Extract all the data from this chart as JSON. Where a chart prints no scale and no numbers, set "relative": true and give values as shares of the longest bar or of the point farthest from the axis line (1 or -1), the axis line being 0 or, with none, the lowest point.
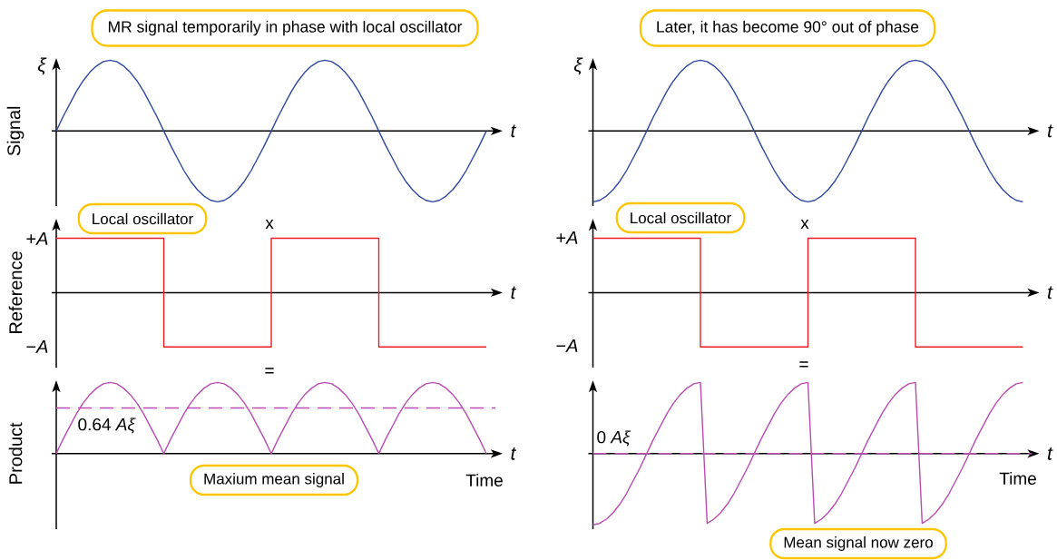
{
  "chart_data": [
    {
      "type": "line",
      "title": "MR signal temporarily in phase with local oscillator",
      "xlabel": "t",
      "ylabel": "Signal",
      "annotations": [
        "ξ"
      ],
      "relative": true,
      "categories": [
        null,
        null,
        null,
        null,
        null,
        null,
        null,
        null,
        null,
        null,
        null,
        null,
        null,
        null,
        null,
        null,
        null,
        null,
        null,
        null,
        null,
        null,
        null,
        null,
        null,
        null,
        null,
        null,
        null,
        null,
        null,
        null,
        null,
        null,
        null,
        null,
        null,
        null,
        null,
        null,
        null,
        null,
        null,
        null,
        null,
        null,
        null,
        null,
        null,
        null,
        null,
        null,
        null,
        null,
        null,
        null,
        null,
        null,
        null,
        null,
        null,
        null,
        null,
        null,
        null
      ],
      "series": [
        {
          "color": "#2e48a0",
          "values": [
            0,
            0.2,
            0.38,
            0.56,
            0.71,
            0.83,
            0.92,
            0.98,
            1,
            0.98,
            0.92,
            0.83,
            0.71,
            0.56,
            0.38,
            0.2,
            0,
            -0.2,
            -0.38,
            -0.56,
            -0.71,
            -0.83,
            -0.92,
            -0.98,
            -1,
            -0.98,
            -0.92,
            -0.83,
            -0.71,
            -0.56,
            -0.38,
            -0.2,
            0,
            0.2,
            0.38,
            0.56,
            0.71,
            0.83,
            0.92,
            0.98,
            1,
            0.98,
            0.92,
            0.83,
            0.71,
            0.56,
            0.38,
            0.2,
            0,
            -0.2,
            -0.38,
            -0.56,
            -0.71,
            -0.83,
            -0.92,
            -0.98,
            -1,
            -0.98,
            -0.92,
            -0.83,
            -0.71,
            -0.56,
            -0.38,
            -0.2,
            0
          ]
        }
      ]
    },
    {
      "type": "line",
      "title": "Later, it has become 90° out of phase",
      "xlabel": "t",
      "annotations": [
        "ξ"
      ],
      "relative": true,
      "categories": [
        null,
        null,
        null,
        null,
        null,
        null,
        null,
        null,
        null,
        null,
        null,
        null,
        null,
        null,
        null,
        null,
        null,
        null,
        null,
        null,
        null,
        null,
        null,
        null,
        null,
        null,
        null,
        null,
        null,
        null,
        null,
        null,
        null,
        null,
        null,
        null,
        null,
        null,
        null,
        null,
        null,
        null,
        null,
        null,
        null,
        null,
        null,
        null,
        null,
        null,
        null,
        null,
        null,
        null,
        null,
        null,
        null,
        null,
        null,
        null,
        null,
        null,
        null,
        null,
        null
      ],
      "series": [
        {
          "color": "#2e48a0",
          "values": [
            -1,
            -0.98,
            -0.92,
            -0.83,
            -0.71,
            -0.56,
            -0.38,
            -0.2,
            0,
            0.2,
            0.38,
            0.56,
            0.71,
            0.83,
            0.92,
            0.98,
            1,
            0.98,
            0.92,
            0.83,
            0.71,
            0.56,
            0.38,
            0.2,
            0,
            -0.2,
            -0.38,
            -0.56,
            -0.71,
            -0.83,
            -0.92,
            -0.98,
            -1,
            -0.98,
            -0.92,
            -0.83,
            -0.71,
            -0.56,
            -0.38,
            -0.2,
            0,
            0.2,
            0.38,
            0.56,
            0.71,
            0.83,
            0.92,
            0.98,
            1,
            0.98,
            0.92,
            0.83,
            0.71,
            0.56,
            0.38,
            0.2,
            0,
            -0.2,
            -0.38,
            -0.56,
            -0.71,
            -0.83,
            -0.92,
            -0.98,
            -1
          ]
        }
      ]
    },
    {
      "type": "step",
      "xlabel": "t",
      "ylabel": "Reference",
      "annotations": [
        "Local oscillator",
        "x",
        "+*A*",
        "−*A*"
      ],
      "relative": true,
      "categories": [
        null,
        null,
        null,
        null,
        null,
        null,
        null,
        null,
        null,
        null,
        null,
        null,
        null,
        null,
        null,
        null,
        null,
        null,
        null,
        null,
        null,
        null,
        null,
        null,
        null,
        null,
        null,
        null,
        null,
        null,
        null,
        null,
        null,
        null,
        null,
        null,
        null,
        null,
        null,
        null,
        null,
        null,
        null,
        null,
        null,
        null,
        null,
        null,
        null,
        null,
        null,
        null,
        null,
        null,
        null,
        null,
        null,
        null,
        null,
        null,
        null,
        null,
        null,
        null,
        null
      ],
      "series": [
        {
          "color": "#ec1c24",
          "values": [
            1,
            1,
            1,
            1,
            1,
            1,
            1,
            1,
            1,
            1,
            1,
            1,
            1,
            1,
            1,
            1,
            -1,
            -1,
            -1,
            -1,
            -1,
            -1,
            -1,
            -1,
            -1,
            -1,
            -1,
            -1,
            -1,
            -1,
            -1,
            -1,
            1,
            1,
            1,
            1,
            1,
            1,
            1,
            1,
            1,
            1,
            1,
            1,
            1,
            1,
            1,
            1,
            -1,
            -1,
            -1,
            -1,
            -1,
            -1,
            -1,
            -1,
            -1,
            -1,
            -1,
            -1,
            -1,
            -1,
            -1,
            -1,
            -1
          ]
        }
      ]
    },
    {
      "type": "step",
      "xlabel": "t",
      "annotations": [
        "Local oscillator",
        "x",
        "+*A*",
        "−*A*"
      ],
      "relative": true,
      "categories": [
        null,
        null,
        null,
        null,
        null,
        null,
        null,
        null,
        null,
        null,
        null,
        null,
        null,
        null,
        null,
        null,
        null,
        null,
        null,
        null,
        null,
        null,
        null,
        null,
        null,
        null,
        null,
        null,
        null,
        null,
        null,
        null,
        null,
        null,
        null,
        null,
        null,
        null,
        null,
        null,
        null,
        null,
        null,
        null,
        null,
        null,
        null,
        null,
        null,
        null,
        null,
        null,
        null,
        null,
        null,
        null,
        null,
        null,
        null,
        null,
        null,
        null,
        null,
        null,
        null
      ],
      "series": [
        {
          "color": "#ec1c24",
          "values": [
            1,
            1,
            1,
            1,
            1,
            1,
            1,
            1,
            1,
            1,
            1,
            1,
            1,
            1,
            1,
            1,
            -1,
            -1,
            -1,
            -1,
            -1,
            -1,
            -1,
            -1,
            -1,
            -1,
            -1,
            -1,
            -1,
            -1,
            -1,
            -1,
            1,
            1,
            1,
            1,
            1,
            1,
            1,
            1,
            1,
            1,
            1,
            1,
            1,
            1,
            1,
            1,
            -1,
            -1,
            -1,
            -1,
            -1,
            -1,
            -1,
            -1,
            -1,
            -1,
            -1,
            -1,
            -1,
            -1,
            -1,
            -1,
            -1
          ]
        }
      ]
    },
    {
      "type": "line",
      "xlabel": "t",
      "ylabel": "Product",
      "annotations": [
        "=",
        "Time",
        "Maxium mean signal"
      ],
      "relative": true,
      "categories": [
        null,
        null,
        null,
        null,
        null,
        null,
        null,
        null,
        null,
        null,
        null,
        null,
        null,
        null,
        null,
        null,
        null,
        null,
        null,
        null,
        null,
        null,
        null,
        null,
        null,
        null,
        null,
        null,
        null,
        null,
        null,
        null,
        null,
        null,
        null,
        null,
        null,
        null,
        null,
        null,
        null,
        null,
        null,
        null,
        null,
        null,
        null,
        null,
        null,
        null,
        null,
        null,
        null,
        null,
        null,
        null,
        null,
        null,
        null,
        null,
        null,
        null,
        null,
        null,
        null
      ],
      "series": [
        {
          "color": "#b94db0",
          "values": [
            0,
            0.2,
            0.38,
            0.56,
            0.71,
            0.83,
            0.92,
            0.98,
            1,
            0.98,
            0.92,
            0.83,
            0.71,
            0.56,
            0.38,
            0.2,
            0,
            0.2,
            0.38,
            0.56,
            0.71,
            0.83,
            0.92,
            0.98,
            1,
            0.98,
            0.92,
            0.83,
            0.71,
            0.56,
            0.38,
            0.2,
            0,
            0.2,
            0.38,
            0.56,
            0.71,
            0.83,
            0.92,
            0.98,
            1,
            0.98,
            0.92,
            0.83,
            0.71,
            0.56,
            0.38,
            0.2,
            0,
            0.2,
            0.38,
            0.56,
            0.71,
            0.83,
            0.92,
            0.98,
            1,
            0.98,
            0.92,
            0.83,
            0.71,
            0.56,
            0.38,
            0.2,
            0
          ]
        }
      ],
      "ref_lines": [
        {
          "axis": "y",
          "value": 0.64,
          "label": "0.64 *Aξ*",
          "color": "#b94db0",
          "line_style": "dashed"
        }
      ]
    },
    {
      "type": "line",
      "xlabel": "t",
      "annotations": [
        "=",
        "Time",
        "Mean signal now zero"
      ],
      "relative": true,
      "categories": [
        null,
        null,
        null,
        null,
        null,
        null,
        null,
        null,
        null,
        null,
        null,
        null,
        null,
        null,
        null,
        null,
        null,
        null,
        null,
        null,
        null,
        null,
        null,
        null,
        null,
        null,
        null,
        null,
        null,
        null,
        null,
        null,
        null,
        null,
        null,
        null,
        null,
        null,
        null,
        null,
        null,
        null,
        null,
        null,
        null,
        null,
        null,
        null,
        null,
        null,
        null,
        null,
        null,
        null,
        null,
        null,
        null,
        null,
        null,
        null,
        null,
        null,
        null,
        null,
        null
      ],
      "series": [
        {
          "color": "#b94db0",
          "values": [
            -1,
            -0.98,
            -0.92,
            -0.83,
            -0.71,
            -0.56,
            -0.38,
            -0.2,
            0,
            0.2,
            0.38,
            0.56,
            0.71,
            0.83,
            0.92,
            0.98,
            1,
            -0.98,
            -0.92,
            -0.83,
            -0.71,
            -0.56,
            -0.38,
            -0.2,
            0,
            0.2,
            0.38,
            0.56,
            0.71,
            0.83,
            0.92,
            0.98,
            1,
            -0.98,
            -0.92,
            -0.83,
            -0.71,
            -0.56,
            -0.38,
            -0.2,
            0,
            0.2,
            0.38,
            0.56,
            0.71,
            0.83,
            0.92,
            0.98,
            1,
            -0.98,
            -0.92,
            -0.83,
            -0.71,
            -0.56,
            -0.38,
            -0.2,
            0,
            0.2,
            0.38,
            0.56,
            0.71,
            0.83,
            0.92,
            0.98,
            1
          ]
        }
      ],
      "ref_lines": [
        {
          "axis": "y",
          "value": 0,
          "label": "0 *Aξ*",
          "color": "#b94db0",
          "line_style": "dashed"
        }
      ]
    }
  ]
}
